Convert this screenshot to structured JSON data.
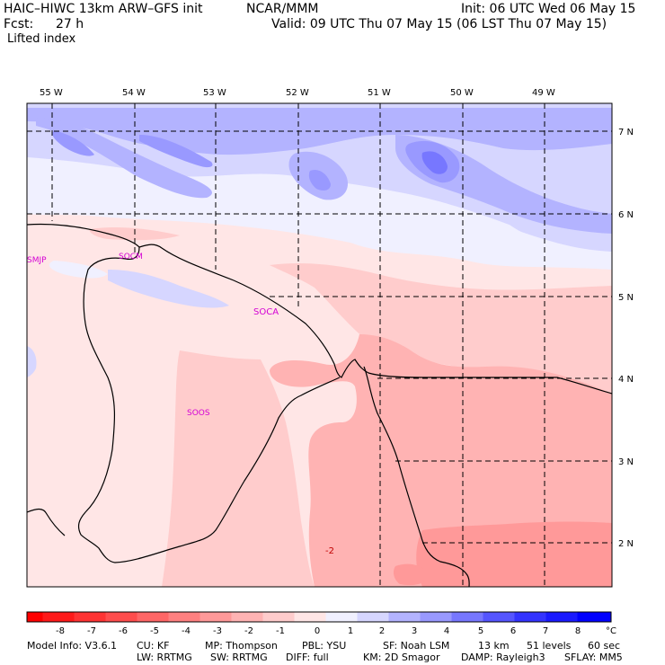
{
  "header": {
    "model_title": "HAIC–HIWC 13km ARW–GFS init",
    "center": "NCAR/MMM",
    "init_label": "Init: 06 UTC Wed 06 May 15",
    "fcst_label": "Fcst:",
    "fcst_value": "27 h",
    "valid_label": "Valid: 09 UTC Thu 07 May 15 (06 LST Thu 07 May 15)",
    "field_name": "Lifted index"
  },
  "map": {
    "lon_labels": [
      "55 W",
      "54 W",
      "53 W",
      "52 W",
      "51 W",
      "50 W",
      "49 W"
    ],
    "lat_labels": [
      "7 N",
      "6 N",
      "5 N",
      "4 N",
      "3 N",
      "2 N"
    ],
    "stations": [
      "SMJP",
      "SOCM",
      "SOCA",
      "SOOS"
    ],
    "contour_label": "-2",
    "colors": {
      "coast": "#000000",
      "grid": "#000000",
      "station": "#d400d4"
    }
  },
  "colorbar": {
    "ticks": [
      "-8",
      "-7",
      "-6",
      "-5",
      "-4",
      "-3",
      "-2",
      "-1",
      "0",
      "1",
      "2",
      "3",
      "4",
      "5",
      "6",
      "7",
      "8"
    ],
    "unit": "°C",
    "colors": [
      "#ff1a1a",
      "#ff3333",
      "#ff4d4d",
      "#ff6666",
      "#ff8080",
      "#ff9999",
      "#ffb3b3",
      "#ffcccc",
      "#ffe6e6",
      "#f0f0ff",
      "#d6d6ff",
      "#b3b3ff",
      "#9999ff",
      "#7777ff",
      "#5555ff",
      "#3333ff",
      "#0000ff"
    ]
  },
  "model_info": {
    "line1": {
      "info": "Model Info: V3.6.1",
      "cu": "CU: KF",
      "mp": "MP: Thompson",
      "pbl": "PBL: YSU",
      "sf": "SF: Noah LSM",
      "res": "13 km",
      "levels": "51 levels",
      "dt": "60 sec"
    },
    "line2": {
      "lw": "LW: RRTMG",
      "sw": "SW: RRTMG",
      "diff": "DIFF: full",
      "km": "KM: 2D Smagor",
      "damp": "DAMP: Rayleigh3",
      "sflay": "SFLAY: MM5"
    }
  }
}
